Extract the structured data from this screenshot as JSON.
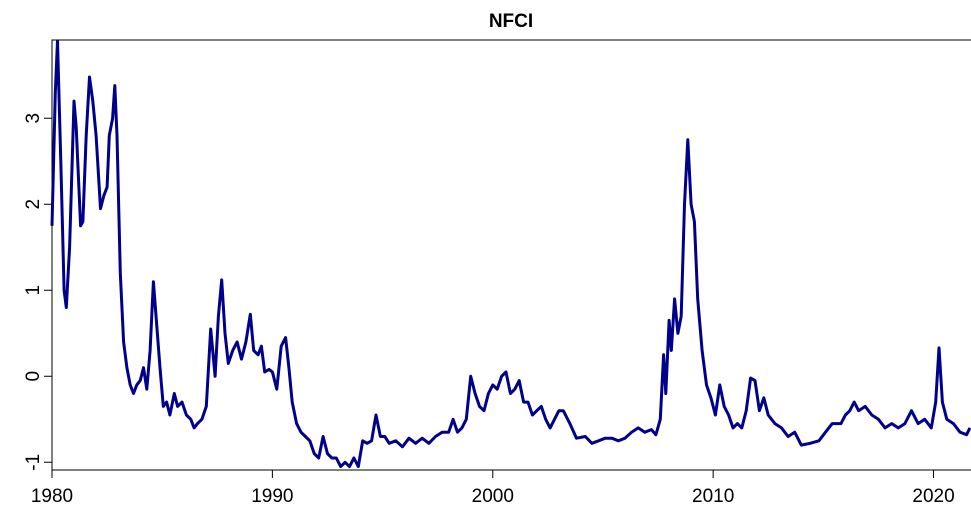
{
  "chart_data": {
    "type": "line",
    "title": "NFCI",
    "x": [
      1980.0,
      1980.15,
      1980.25,
      1980.4,
      1980.55,
      1980.65,
      1980.8,
      1981.0,
      1981.1,
      1981.3,
      1981.4,
      1981.55,
      1981.7,
      1981.85,
      1982.0,
      1982.2,
      1982.35,
      1982.5,
      1982.6,
      1982.75,
      1982.85,
      1982.95,
      1983.1,
      1983.25,
      1983.4,
      1983.55,
      1983.7,
      1983.85,
      1984.0,
      1984.15,
      1984.3,
      1984.45,
      1984.6,
      1984.75,
      1984.9,
      1985.05,
      1985.2,
      1985.35,
      1985.55,
      1985.7,
      1985.9,
      1986.1,
      1986.3,
      1986.45,
      1986.6,
      1986.8,
      1987.0,
      1987.2,
      1987.4,
      1987.55,
      1987.7,
      1987.85,
      1988.0,
      1988.2,
      1988.4,
      1988.6,
      1988.8,
      1989.0,
      1989.15,
      1989.35,
      1989.5,
      1989.65,
      1989.85,
      1990.0,
      1990.2,
      1990.4,
      1990.6,
      1990.75,
      1990.9,
      1991.1,
      1991.3,
      1991.5,
      1991.7,
      1991.9,
      1992.1,
      1992.3,
      1992.5,
      1992.7,
      1992.9,
      1993.1,
      1993.3,
      1993.5,
      1993.7,
      1993.9,
      1994.1,
      1994.3,
      1994.5,
      1994.7,
      1994.9,
      1995.1,
      1995.3,
      1995.6,
      1995.9,
      1996.2,
      1996.5,
      1996.8,
      1997.1,
      1997.4,
      1997.7,
      1998.0,
      1998.2,
      1998.4,
      1998.6,
      1998.8,
      1999.0,
      1999.2,
      1999.4,
      1999.6,
      1999.8,
      2000.0,
      2000.2,
      2000.4,
      2000.6,
      2000.8,
      2001.0,
      2001.2,
      2001.4,
      2001.6,
      2001.8,
      2002.0,
      2002.2,
      2002.4,
      2002.6,
      2002.8,
      2003.0,
      2003.2,
      2003.5,
      2003.8,
      2004.2,
      2004.5,
      2004.8,
      2005.1,
      2005.4,
      2005.7,
      2006.0,
      2006.3,
      2006.6,
      2006.9,
      2007.2,
      2007.4,
      2007.6,
      2007.75,
      2007.85,
      2008.0,
      2008.1,
      2008.25,
      2008.4,
      2008.55,
      2008.7,
      2008.85,
      2009.0,
      2009.15,
      2009.3,
      2009.5,
      2009.7,
      2009.9,
      2010.1,
      2010.3,
      2010.5,
      2010.7,
      2010.9,
      2011.1,
      2011.3,
      2011.5,
      2011.7,
      2011.9,
      2012.1,
      2012.3,
      2012.5,
      2012.8,
      2013.1,
      2013.4,
      2013.7,
      2014.0,
      2014.4,
      2014.8,
      2015.1,
      2015.4,
      2015.8,
      2016.0,
      2016.2,
      2016.4,
      2016.6,
      2016.9,
      2017.2,
      2017.5,
      2017.8,
      2018.1,
      2018.4,
      2018.7,
      2019.0,
      2019.3,
      2019.6,
      2019.9,
      2020.1,
      2020.25,
      2020.4,
      2020.6,
      2020.9,
      2021.2,
      2021.5,
      2021.65
    ],
    "values": [
      1.75,
      3.3,
      3.9,
      2.5,
      1.0,
      0.8,
      1.5,
      3.2,
      2.9,
      1.75,
      1.8,
      2.8,
      3.48,
      3.2,
      2.8,
      1.95,
      2.1,
      2.2,
      2.8,
      3.0,
      3.38,
      2.8,
      1.2,
      0.4,
      0.1,
      -0.1,
      -0.2,
      -0.1,
      -0.05,
      0.1,
      -0.15,
      0.3,
      1.1,
      0.6,
      0.1,
      -0.35,
      -0.3,
      -0.45,
      -0.2,
      -0.35,
      -0.3,
      -0.45,
      -0.5,
      -0.6,
      -0.55,
      -0.5,
      -0.35,
      0.55,
      0.0,
      0.7,
      1.12,
      0.5,
      0.15,
      0.3,
      0.4,
      0.2,
      0.4,
      0.72,
      0.3,
      0.25,
      0.35,
      0.05,
      0.08,
      0.05,
      -0.15,
      0.35,
      0.45,
      0.1,
      -0.3,
      -0.55,
      -0.65,
      -0.7,
      -0.75,
      -0.9,
      -0.95,
      -0.7,
      -0.9,
      -0.95,
      -0.95,
      -1.05,
      -1.0,
      -1.05,
      -0.95,
      -1.05,
      -0.75,
      -0.78,
      -0.75,
      -0.45,
      -0.7,
      -0.7,
      -0.78,
      -0.75,
      -0.82,
      -0.72,
      -0.78,
      -0.72,
      -0.78,
      -0.7,
      -0.65,
      -0.65,
      -0.5,
      -0.65,
      -0.6,
      -0.5,
      0.0,
      -0.2,
      -0.35,
      -0.4,
      -0.2,
      -0.1,
      -0.15,
      0.0,
      0.05,
      -0.2,
      -0.15,
      -0.05,
      -0.3,
      -0.3,
      -0.45,
      -0.4,
      -0.35,
      -0.5,
      -0.6,
      -0.5,
      -0.4,
      -0.4,
      -0.55,
      -0.72,
      -0.7,
      -0.78,
      -0.75,
      -0.72,
      -0.72,
      -0.75,
      -0.72,
      -0.65,
      -0.6,
      -0.65,
      -0.62,
      -0.68,
      -0.5,
      0.25,
      -0.2,
      0.65,
      0.3,
      0.9,
      0.5,
      0.7,
      2.0,
      2.75,
      2.0,
      1.8,
      0.9,
      0.3,
      -0.1,
      -0.25,
      -0.45,
      -0.1,
      -0.35,
      -0.45,
      -0.6,
      -0.55,
      -0.6,
      -0.4,
      -0.02,
      -0.05,
      -0.4,
      -0.25,
      -0.45,
      -0.55,
      -0.6,
      -0.7,
      -0.65,
      -0.8,
      -0.78,
      -0.75,
      -0.65,
      -0.55,
      -0.55,
      -0.45,
      -0.4,
      -0.3,
      -0.4,
      -0.35,
      -0.45,
      -0.5,
      -0.6,
      -0.55,
      -0.6,
      -0.55,
      -0.4,
      -0.55,
      -0.5,
      -0.6,
      -0.3,
      0.33,
      -0.3,
      -0.5,
      -0.55,
      -0.65,
      -0.68,
      -0.6
    ],
    "color": "#00008b",
    "xlim": [
      1980,
      2021.7
    ],
    "xticks": [
      1980,
      1990,
      2000,
      2010,
      2020
    ],
    "ylim": [
      -1.09,
      3.91
    ],
    "yticks": [
      -1,
      0,
      1,
      2,
      3
    ]
  }
}
